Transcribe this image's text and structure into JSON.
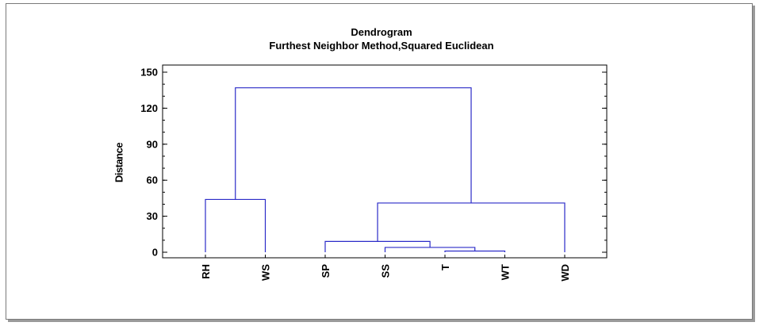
{
  "chart_data": {
    "type": "dendrogram",
    "title": "Dendrogram",
    "subtitle": "Furthest Neighbor Method,Squared Euclidean",
    "xlabel": "",
    "ylabel": "Distance",
    "ylim": [
      0,
      150
    ],
    "yticks": [
      0,
      30,
      60,
      90,
      120,
      150
    ],
    "leaves": [
      "RH",
      "WS",
      "SP",
      "SS",
      "T",
      "WT",
      "WD"
    ],
    "merges": [
      {
        "left": "T",
        "right": "WT",
        "height": 1
      },
      {
        "left": "SS",
        "right": "T+WT",
        "height": 4
      },
      {
        "left": "SP",
        "right": "SS+T+WT",
        "height": 9
      },
      {
        "left": "SP+SS+T+WT",
        "right": "WD",
        "height": 41
      },
      {
        "left": "RH",
        "right": "WS",
        "height": 44
      },
      {
        "left": "RH+WS",
        "right": "SP+SS+T+WT+WD",
        "height": 137
      }
    ],
    "line_color": "#2b2bc8"
  }
}
